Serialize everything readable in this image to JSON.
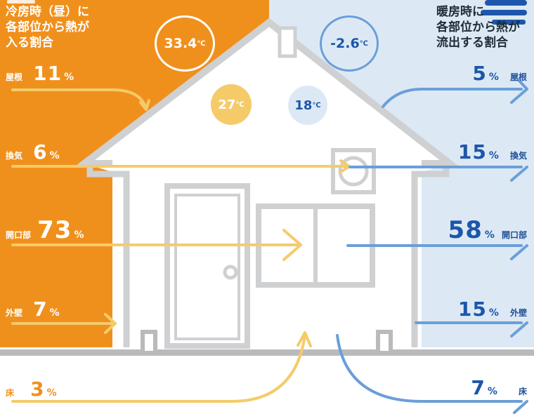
{
  "cooling": {
    "title_lines": [
      "冷房時（昼）に",
      "各部位から熱が",
      "入る割合"
    ],
    "outdoor_temp": {
      "value": "33.4",
      "unit": "℃"
    },
    "indoor_temp": {
      "value": "27",
      "unit": "℃"
    },
    "items": [
      {
        "part": "屋根",
        "percent": "11",
        "unit": "%"
      },
      {
        "part": "換気",
        "percent": "6",
        "unit": "%"
      },
      {
        "part": "開口部",
        "percent": "73",
        "unit": "%"
      },
      {
        "part": "外壁",
        "percent": "7",
        "unit": "%"
      },
      {
        "part": "床",
        "percent": "3",
        "unit": "%"
      }
    ]
  },
  "heating": {
    "title_lines": [
      "暖房時に",
      "各部位から熱が",
      "流出する割合"
    ],
    "outdoor_temp": {
      "value": "-2.6",
      "unit": "℃"
    },
    "indoor_temp": {
      "value": "18",
      "unit": "℃"
    },
    "items": [
      {
        "part": "屋根",
        "percent": "5",
        "unit": "%"
      },
      {
        "part": "換気",
        "percent": "15",
        "unit": "%"
      },
      {
        "part": "開口部",
        "percent": "58",
        "unit": "%"
      },
      {
        "part": "外壁",
        "percent": "15",
        "unit": "%"
      },
      {
        "part": "床",
        "percent": "7",
        "unit": "%"
      }
    ]
  },
  "colors": {
    "cooling_bg": "#f0901c",
    "heating_bg": "#dce9f5",
    "cooling_arrow": "#f5cb6a",
    "heating_arrow": "#6b9fd8",
    "house_outline": "#cfd0d2"
  }
}
